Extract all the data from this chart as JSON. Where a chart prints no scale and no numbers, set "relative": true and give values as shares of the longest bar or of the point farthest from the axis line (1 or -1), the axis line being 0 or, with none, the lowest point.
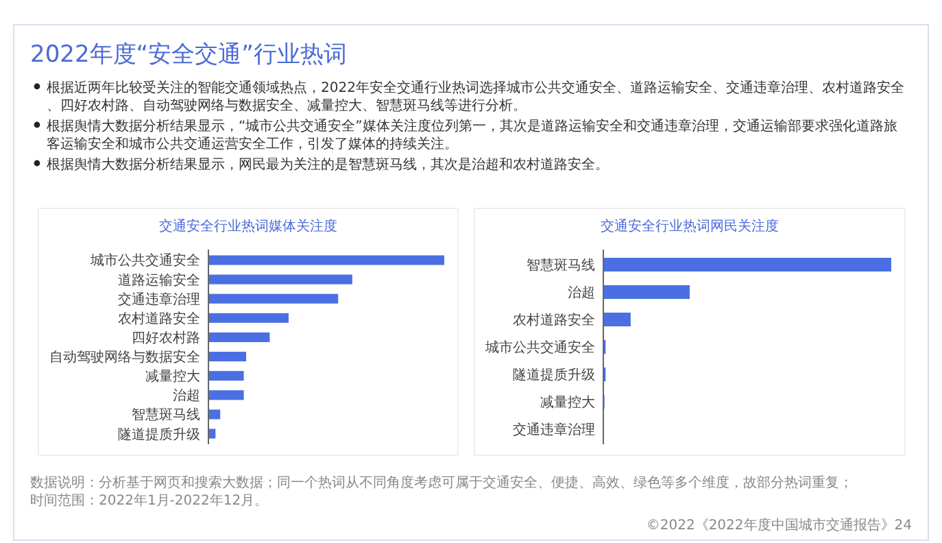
{
  "chart_data": [
    {
      "type": "other",
      "title": "2022年度“安全交通”行业热词",
      "annotations": [
        "根据近两年比较受关注的智能交通领域热点，2022年安全交通行业热词选择城市公共交通安全、道路运输安全、交通违章治理、农村道路安全、四好农村路、自动驾驶网络与数据安全、减量控大、智慧斑马线等进行分析。",
        "根据舆情大数据分析结果显示，“城市公共交通安全”媒体关注度位列第一，其次是道路运输安全和交通违章治理，交通运输部要求强化道路旅客运输安全和城市公共交通运营安全工作，引发了媒体的持续关注。",
        "根据舆情大数据分析结果显示，网民最为关注的是智慧斑马线，其次是治超和农村道路安全。"
      ]
    },
    {
      "type": "bar",
      "orientation": "horizontal",
      "relative": true,
      "title": "交通安全行业热词媒体关注度",
      "categories": [
        "城市公共交通安全",
        "道路运输安全",
        "交通违章治理",
        "农村道路安全",
        "四好农村路",
        "自动驾驶网络与数据安全",
        "减量控大",
        "治超",
        "智慧斑马线",
        "隧道提质升级"
      ],
      "values": [
        1,
        0.61,
        0.55,
        0.34,
        0.26,
        0.16,
        0.15,
        0.15,
        0.05,
        0.03
      ],
      "color": "#4b6fe3"
    },
    {
      "type": "bar",
      "orientation": "horizontal",
      "relative": true,
      "title": "交通安全行业热词网民关注度",
      "categories": [
        "智慧斑马线",
        "治超",
        "农村道路安全",
        "城市公共交通安全",
        "隧道提质升级",
        "减量控大",
        "交通违章治理"
      ],
      "values": [
        1,
        0.3,
        0.095,
        0.008,
        0.008,
        0.004,
        0
      ],
      "color": "#4b6fe3"
    },
    {
      "type": "other",
      "annotations": [
        "数据说明：分析基于网页和搜索大数据；同一个热词从不同角度考虑可属于交通安全、便捷、高效、绿色等多个维度，故部分热词重复；",
        "时间范围：2022年1月-2022年12月。",
        "©2022《2022年度中国城市交通报告》24"
      ]
    }
  ]
}
